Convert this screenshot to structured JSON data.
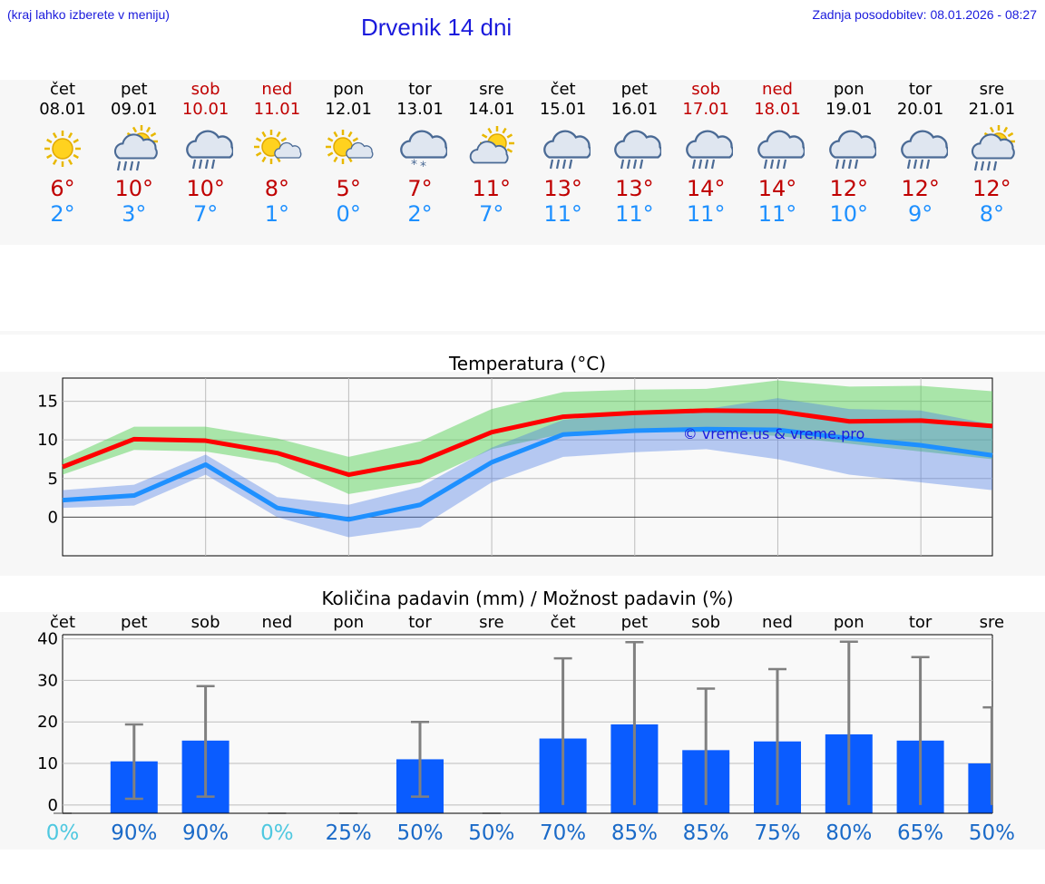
{
  "header": {
    "hint": "(kraj lahko izberete v meniju)",
    "title": "Drvenik 14 dni",
    "updated": "Zadnja posodobitev: 08.01.2026 - 08:27"
  },
  "days": [
    {
      "name": "čet",
      "date": "08.01",
      "icon": "sun-icon",
      "max": "6°",
      "min": "2°",
      "weekend": false
    },
    {
      "name": "pet",
      "date": "09.01",
      "icon": "sun-cloud-rain-icon",
      "max": "10°",
      "min": "3°",
      "weekend": false
    },
    {
      "name": "sob",
      "date": "10.01",
      "icon": "cloud-rain-icon",
      "max": "10°",
      "min": "7°",
      "weekend": true
    },
    {
      "name": "ned",
      "date": "11.01",
      "icon": "sun-small-cloud-icon",
      "max": "8°",
      "min": "1°",
      "weekend": true
    },
    {
      "name": "pon",
      "date": "12.01",
      "icon": "sun-small-cloud-icon",
      "max": "5°",
      "min": "0°",
      "weekend": false
    },
    {
      "name": "tor",
      "date": "13.01",
      "icon": "cloud-snow-icon",
      "max": "7°",
      "min": "2°",
      "weekend": false
    },
    {
      "name": "sre",
      "date": "14.01",
      "icon": "sun-cloud-icon",
      "max": "11°",
      "min": "7°",
      "weekend": false
    },
    {
      "name": "čet",
      "date": "15.01",
      "icon": "cloud-rain-icon",
      "max": "13°",
      "min": "11°",
      "weekend": false
    },
    {
      "name": "pet",
      "date": "16.01",
      "icon": "cloud-rain-icon",
      "max": "13°",
      "min": "11°",
      "weekend": false
    },
    {
      "name": "sob",
      "date": "17.01",
      "icon": "cloud-rain-icon",
      "max": "14°",
      "min": "11°",
      "weekend": true
    },
    {
      "name": "ned",
      "date": "18.01",
      "icon": "cloud-rain-icon",
      "max": "14°",
      "min": "11°",
      "weekend": true
    },
    {
      "name": "pon",
      "date": "19.01",
      "icon": "cloud-rain-icon",
      "max": "12°",
      "min": "10°",
      "weekend": false
    },
    {
      "name": "tor",
      "date": "20.01",
      "icon": "cloud-rain-icon",
      "max": "12°",
      "min": "9°",
      "weekend": false
    },
    {
      "name": "sre",
      "date": "21.01",
      "icon": "sun-cloud-rain-icon",
      "max": "12°",
      "min": "8°",
      "weekend": false
    }
  ],
  "colors": {
    "max": "#c00000",
    "min": "#1e90ff",
    "link": "#1a1adc",
    "bar": "#0a5cff",
    "whisker": "#808080",
    "pct_zero": "#4fc8e0",
    "pct": "#1a6ac8"
  },
  "chart_data": [
    {
      "type": "line",
      "title": "Temperatura (°C)",
      "watermark": "© vreme.us & vreme.pro",
      "x": [
        0,
        1,
        2,
        3,
        4,
        5,
        6,
        7,
        8,
        9,
        10,
        11,
        12,
        13
      ],
      "ylim": [
        -5,
        18
      ],
      "yticks": [
        0,
        5,
        10,
        15
      ],
      "series": [
        {
          "name": "max",
          "color": "#ff0000",
          "values": [
            6.5,
            10.1,
            9.9,
            8.3,
            5.5,
            7.2,
            11,
            13,
            13.5,
            13.8,
            13.7,
            12.4,
            12.5,
            11.8
          ],
          "band_low": [
            5.5,
            8.7,
            8.5,
            7.0,
            3.0,
            4.5,
            8.8,
            10.8,
            11.0,
            11.0,
            10.5,
            9.5,
            8.5,
            7.5
          ],
          "band_high": [
            7.5,
            11.7,
            11.7,
            10.2,
            7.8,
            9.8,
            14.0,
            16.2,
            16.5,
            16.6,
            17.7,
            16.9,
            17.0,
            16.3
          ]
        },
        {
          "name": "min",
          "color": "#1e90ff",
          "values": [
            2.2,
            2.8,
            6.8,
            1.2,
            -0.3,
            1.6,
            7.1,
            10.7,
            11.2,
            11.4,
            11.3,
            10.2,
            9.3,
            8.0
          ],
          "band_low": [
            1.2,
            1.5,
            5.5,
            0.0,
            -2.6,
            -1.3,
            4.5,
            7.8,
            8.4,
            8.8,
            7.5,
            5.5,
            4.5,
            3.5
          ],
          "band_high": [
            3.5,
            4.2,
            8.1,
            2.6,
            1.6,
            3.9,
            9.0,
            12.6,
            13.4,
            14.0,
            15.4,
            14.0,
            13.8,
            12.0
          ]
        }
      ]
    },
    {
      "type": "bar",
      "title": "Količina padavin (mm) / Možnost padavin (%)",
      "categories": [
        "čet",
        "pet",
        "sob",
        "ned",
        "pon",
        "tor",
        "sre",
        "čet",
        "pet",
        "sob",
        "ned",
        "pon",
        "tor",
        "sre"
      ],
      "ylim": [
        -2,
        41
      ],
      "yticks": [
        0,
        10,
        20,
        30,
        40
      ],
      "values": [
        0,
        10.5,
        15.5,
        0,
        0,
        11,
        0,
        16,
        19.4,
        13.2,
        15.3,
        17,
        15.5,
        10
      ],
      "err_low": [
        0,
        1.5,
        2,
        0,
        0,
        2,
        0,
        0,
        0,
        0,
        0,
        0,
        0,
        0
      ],
      "err_high": [
        0,
        19.4,
        28.6,
        0,
        0,
        20,
        0,
        35.3,
        39.2,
        28,
        32.7,
        39.3,
        35.6,
        23.5
      ],
      "probability": [
        "0%",
        "90%",
        "90%",
        "0%",
        "25%",
        "50%",
        "50%",
        "70%",
        "85%",
        "85%",
        "75%",
        "80%",
        "65%",
        "50%"
      ]
    }
  ]
}
